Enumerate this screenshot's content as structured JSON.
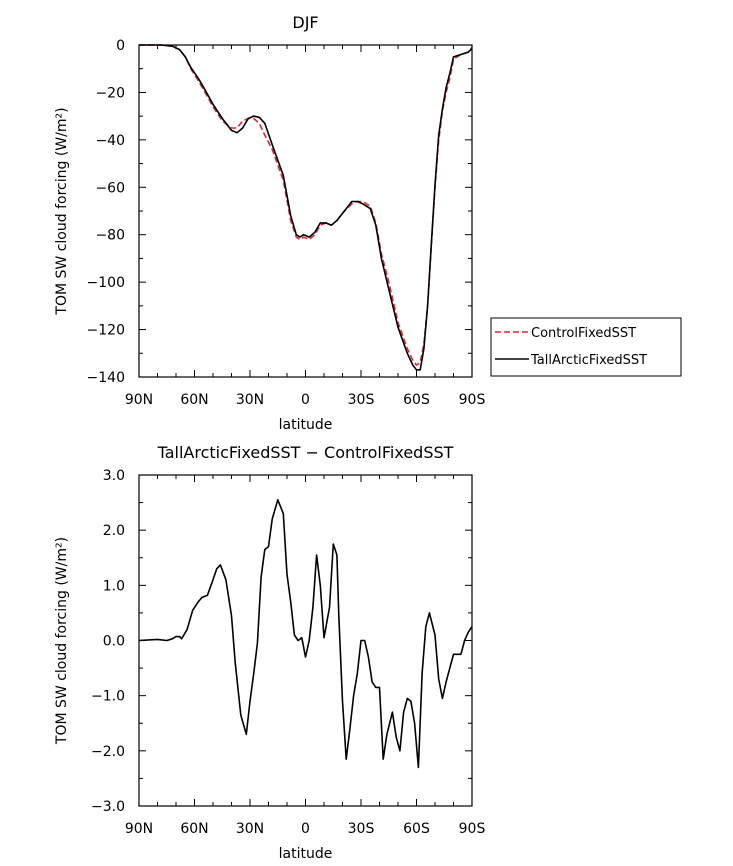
{
  "chart_data": [
    {
      "type": "line",
      "title": "DJF",
      "xlabel": "latitude",
      "ylabel": "TOM SW cloud forcing (W/m²)",
      "xlim": [
        90,
        -90
      ],
      "ylim": [
        -140,
        0
      ],
      "xticks": [
        90,
        60,
        30,
        0,
        -30,
        -60,
        -90
      ],
      "xtick_labels": [
        "90N",
        "60N",
        "30N",
        "0",
        "30S",
        "60S",
        "90S"
      ],
      "yticks": [
        0,
        -20,
        -40,
        -60,
        -80,
        -100,
        -120,
        -140
      ],
      "ytick_labels": [
        "0",
        "−20",
        "−40",
        "−60",
        "−80",
        "−100",
        "−120",
        "−140"
      ],
      "legend_position": "right",
      "series": [
        {
          "name": "ControlFixedSST",
          "color": "#e8232a",
          "dash": "dashed",
          "x": [
            90,
            84,
            78,
            72,
            68,
            65,
            62,
            58,
            55,
            50,
            45,
            40,
            37,
            34,
            31,
            28,
            25,
            22,
            18,
            12,
            8,
            5,
            3,
            1,
            -2,
            -5,
            -8,
            -11,
            -14,
            -17,
            -21,
            -25,
            -28,
            -31,
            -35,
            -38,
            -41,
            -45,
            -50,
            -55,
            -58,
            -60,
            -62,
            -64,
            -66,
            -68,
            -70,
            -72,
            -74,
            -76,
            -78,
            -80,
            -84,
            -88,
            -90
          ],
          "y": [
            0,
            0,
            0,
            -0.5,
            -2,
            -5,
            -10,
            -15,
            -19,
            -26,
            -32,
            -35,
            -35,
            -32,
            -31,
            -31,
            -33,
            -38,
            -44,
            -57,
            -74,
            -81,
            -82,
            -81,
            -82,
            -80,
            -76,
            -75,
            -76,
            -74,
            -70,
            -67,
            -66,
            -66,
            -68,
            -75,
            -88,
            -100,
            -117,
            -128,
            -133,
            -135,
            -134,
            -126,
            -110,
            -85,
            -60,
            -40,
            -28,
            -20,
            -14,
            -6,
            -4,
            -3,
            -1
          ]
        },
        {
          "name": "TallArcticFixedSST",
          "color": "#000000",
          "dash": "solid",
          "x": [
            90,
            84,
            78,
            72,
            68,
            65,
            62,
            58,
            55,
            50,
            45,
            40,
            37,
            34,
            31,
            28,
            25,
            22,
            18,
            12,
            8,
            5,
            3,
            1,
            -2,
            -5,
            -8,
            -11,
            -14,
            -17,
            -21,
            -25,
            -28,
            -31,
            -35,
            -38,
            -41,
            -45,
            -50,
            -55,
            -58,
            -60,
            -62,
            -64,
            -66,
            -68,
            -70,
            -72,
            -74,
            -76,
            -78,
            -80,
            -84,
            -88,
            -90
          ],
          "y": [
            0,
            0,
            0,
            -0.5,
            -2,
            -5,
            -9.5,
            -14,
            -18,
            -25,
            -31,
            -36,
            -37,
            -35,
            -31,
            -30,
            -30.5,
            -33,
            -42,
            -55,
            -72,
            -80,
            -81,
            -80,
            -81,
            -79,
            -75,
            -75,
            -76,
            -74,
            -70,
            -66,
            -66,
            -67,
            -69,
            -76,
            -90,
            -103,
            -119,
            -130,
            -135,
            -137,
            -137,
            -128,
            -110,
            -84,
            -59,
            -38,
            -27,
            -18,
            -12,
            -5,
            -4,
            -3,
            -1.5
          ]
        }
      ]
    },
    {
      "type": "line",
      "title": "TallArcticFixedSST − ControlFixedSST",
      "xlabel": "latitude",
      "ylabel": "TOM SW cloud forcing (W/m²)",
      "xlim": [
        90,
        -90
      ],
      "ylim": [
        -3.0,
        3.0
      ],
      "xticks": [
        90,
        60,
        30,
        0,
        -30,
        -60,
        -90
      ],
      "xtick_labels": [
        "90N",
        "60N",
        "30N",
        "0",
        "30S",
        "60S",
        "90S"
      ],
      "yticks": [
        3.0,
        2.0,
        1.0,
        0.0,
        -1.0,
        -2.0,
        -3.0
      ],
      "ytick_labels": [
        "3.0",
        "2.0",
        "1.0",
        "0.0",
        "−1.0",
        "−2.0",
        "−3.0"
      ],
      "series": [
        {
          "name": "TallArcticFixedSST − ControlFixedSST",
          "color": "#000000",
          "dash": "solid",
          "x": [
            90,
            80,
            75,
            72,
            70,
            68,
            67,
            64,
            61,
            58,
            56,
            53,
            50,
            48,
            46,
            43,
            40,
            38,
            35,
            32,
            30,
            28,
            26,
            24,
            22,
            20,
            18,
            15,
            12,
            10,
            8,
            6,
            4,
            2,
            0,
            -2,
            -4,
            -6,
            -8,
            -10,
            -13,
            -15,
            -17,
            -18,
            -20,
            -22,
            -24,
            -26,
            -28,
            -30,
            -32,
            -34,
            -36,
            -38,
            -40,
            -42,
            -44,
            -47,
            -49,
            -51,
            -53,
            -55,
            -57,
            -59,
            -61,
            -63,
            -65,
            -67,
            -70,
            -72,
            -74,
            -76,
            -78,
            -80,
            -82,
            -84,
            -86,
            -88,
            -90
          ],
          "y": [
            0,
            0.02,
            0.0,
            0.03,
            0.07,
            0.07,
            0.03,
            0.2,
            0.55,
            0.7,
            0.78,
            0.82,
            1.1,
            1.3,
            1.37,
            1.1,
            0.45,
            -0.4,
            -1.35,
            -1.7,
            -1.1,
            -0.6,
            -0.05,
            1.15,
            1.65,
            1.7,
            2.2,
            2.55,
            2.3,
            1.2,
            0.7,
            0.1,
            0.0,
            0.05,
            -0.3,
            0.0,
            0.6,
            1.55,
            1.0,
            0.05,
            0.6,
            1.75,
            1.55,
            0.45,
            -1.1,
            -2.15,
            -1.6,
            -1.0,
            -0.6,
            0.0,
            0.0,
            -0.3,
            -0.75,
            -0.85,
            -0.85,
            -2.15,
            -1.7,
            -1.3,
            -1.75,
            -2.0,
            -1.3,
            -1.05,
            -1.1,
            -1.5,
            -2.3,
            -0.6,
            0.25,
            0.5,
            0.1,
            -0.7,
            -1.05,
            -0.75,
            -0.5,
            -0.25,
            -0.25,
            -0.25,
            0.0,
            0.15,
            0.25
          ]
        }
      ]
    }
  ]
}
